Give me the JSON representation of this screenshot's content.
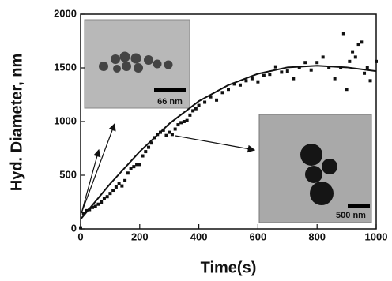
{
  "chart_data": {
    "type": "scatter",
    "xlabel": "Time(s)",
    "ylabel": "Hyd. Diameter, nm",
    "xlim": [
      0,
      1000
    ],
    "ylim": [
      0,
      2000
    ],
    "xticks": [
      0,
      200,
      400,
      600,
      800,
      1000
    ],
    "yticks": [
      0,
      500,
      1000,
      1500,
      2000
    ],
    "annotations": [
      "66 nm",
      "500 nm"
    ],
    "series": [
      {
        "mode": "markers",
        "color": "#111111",
        "x": [
          0,
          10,
          20,
          30,
          40,
          50,
          60,
          70,
          80,
          90,
          100,
          110,
          120,
          130,
          140,
          150,
          160,
          170,
          180,
          190,
          200,
          210,
          220,
          230,
          240,
          250,
          260,
          270,
          280,
          290,
          300,
          310,
          320,
          330,
          340,
          350,
          360,
          370,
          380,
          390,
          400,
          420,
          440,
          460,
          480,
          500,
          520,
          540,
          560,
          580,
          600,
          620,
          640,
          660,
          680,
          700,
          720,
          740,
          760,
          780,
          800,
          820,
          840,
          860,
          880,
          890,
          900,
          910,
          920,
          930,
          940,
          950,
          960,
          970,
          980,
          1000
        ],
        "values": [
          10,
          140,
          170,
          180,
          200,
          210,
          230,
          250,
          280,
          300,
          330,
          360,
          390,
          420,
          400,
          450,
          520,
          560,
          580,
          600,
          600,
          680,
          720,
          760,
          800,
          850,
          880,
          900,
          920,
          870,
          900,
          880,
          930,
          970,
          990,
          1000,
          1010,
          1060,
          1100,
          1120,
          1150,
          1180,
          1230,
          1200,
          1270,
          1300,
          1350,
          1340,
          1380,
          1400,
          1370,
          1430,
          1440,
          1510,
          1460,
          1470,
          1400,
          1500,
          1550,
          1480,
          1550,
          1600,
          1500,
          1400,
          1500,
          1820,
          1300,
          1560,
          1650,
          1600,
          1720,
          1740,
          1450,
          1500,
          1380,
          1560
        ]
      },
      {
        "mode": "line",
        "color": "#111111",
        "x": [
          0,
          100,
          200,
          300,
          400,
          500,
          600,
          700,
          800,
          900,
          1000
        ],
        "values": [
          90,
          420,
          720,
          980,
          1190,
          1340,
          1445,
          1505,
          1520,
          1505,
          1470
        ]
      }
    ]
  }
}
